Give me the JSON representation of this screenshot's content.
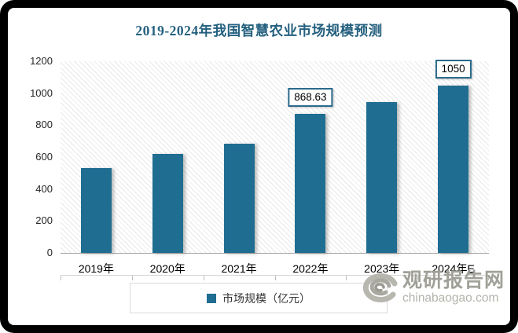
{
  "chart": {
    "title": "2019-2024年我国智慧农业市场规模预测",
    "title_color": "#24607F",
    "legend_label": "市场规模（亿元）"
  },
  "watermark": {
    "name": "观研报告网",
    "domain": "chinabaogao.com"
  },
  "chart_data": {
    "type": "bar",
    "title": "2019-2024年我国智慧农业市场规模预测",
    "categories": [
      "2019年",
      "2020年",
      "2021年",
      "2022年",
      "2023年",
      "2024年E"
    ],
    "values": [
      530,
      620,
      685,
      868.63,
      944,
      1050
    ],
    "data_labels": [
      "",
      "",
      "",
      "868.63",
      "",
      "1050"
    ],
    "xlabel": "",
    "ylabel": "",
    "ylim": [
      0,
      1200
    ],
    "y_ticks": [
      0,
      200,
      400,
      600,
      800,
      1000,
      1200
    ],
    "legend": [
      "市场规模（亿元）"
    ],
    "legend_position": "bottom",
    "grid": false,
    "bar_color": "#1F6D91",
    "label_box_border_color": "#2B6A8C",
    "plot_background": "diagonal-hatch"
  }
}
